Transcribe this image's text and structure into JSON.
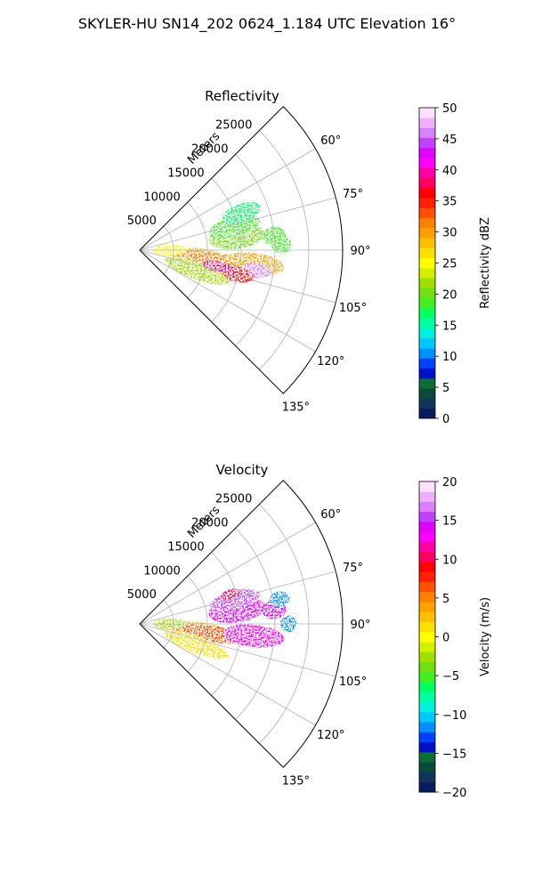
{
  "suptitle": "SKYLER-HU  SN14_202  0624_1.184 UTC Elevation 16°",
  "chart_data": [
    {
      "type": "heatmap",
      "projection": "polar-sector",
      "title": "Reflectivity",
      "radial_label": "Meters",
      "radial_ticks": [
        "5000",
        "10000",
        "15000",
        "20000",
        "25000"
      ],
      "radial_range": [
        0,
        30000
      ],
      "angle_range_deg": [
        45,
        135
      ],
      "angle_ticks": [
        "60°",
        "75°",
        "90°",
        "105°",
        "120°",
        "135°"
      ],
      "grid": true,
      "colorbar": {
        "label": "Reflectivity dBZ",
        "range": [
          0,
          50
        ],
        "ticks": [
          "0",
          "5",
          "10",
          "15",
          "20",
          "25",
          "30",
          "35",
          "40",
          "45",
          "50"
        ],
        "colors": [
          "#0b1a5e",
          "#10355a",
          "#0a4a3c",
          "#0b6e35",
          "#0010c8",
          "#0040ff",
          "#0090ff",
          "#00c8ff",
          "#00f0e0",
          "#00ffa0",
          "#00ff60",
          "#40f020",
          "#70e010",
          "#a0e000",
          "#d0f000",
          "#ffff00",
          "#ffe000",
          "#ffc000",
          "#ffa000",
          "#ff8000",
          "#ff5000",
          "#ff2000",
          "#ff0000",
          "#ff0060",
          "#ff00a0",
          "#ff00ff",
          "#e000ff",
          "#c040ff",
          "#d880ff",
          "#f0b0ff",
          "#ffe0ff"
        ]
      },
      "echoes": [
        {
          "az": 82,
          "r": 14500,
          "sr": 4200,
          "sa": 4.5,
          "level": 20
        },
        {
          "az": 76,
          "r": 14500,
          "sr": 3800,
          "sa": 3.5,
          "level": 18
        },
        {
          "az": 70,
          "r": 16000,
          "sr": 3000,
          "sa": 3,
          "level": 17
        },
        {
          "az": 93,
          "r": 7000,
          "sr": 5000,
          "sa": 4,
          "level": 28
        },
        {
          "az": 98,
          "r": 11000,
          "sr": 5500,
          "sa": 4,
          "level": 32
        },
        {
          "az": 97,
          "r": 17000,
          "sr": 4500,
          "sa": 3.5,
          "level": 30
        },
        {
          "az": 100,
          "r": 17500,
          "sr": 2200,
          "sa": 2.2,
          "level": 46
        },
        {
          "az": 104,
          "r": 14000,
          "sr": 3500,
          "sa": 3,
          "level": 36
        },
        {
          "az": 110,
          "r": 9000,
          "sr": 5000,
          "sa": 5,
          "level": 22
        },
        {
          "az": 84,
          "r": 20000,
          "sr": 1800,
          "sa": 2.5,
          "level": 18
        },
        {
          "az": 88,
          "r": 21000,
          "sr": 1500,
          "sa": 2,
          "level": 19
        },
        {
          "az": 90,
          "r": 4500,
          "sr": 2500,
          "sa": 5,
          "level": 25
        },
        {
          "az": 102,
          "r": 12000,
          "sr": 2500,
          "sa": 2.5,
          "level": 38
        }
      ]
    },
    {
      "type": "heatmap",
      "projection": "polar-sector",
      "title": "Velocity",
      "radial_label": "Meters",
      "radial_ticks": [
        "5000",
        "10000",
        "15000",
        "20000",
        "25000"
      ],
      "radial_range": [
        0,
        30000
      ],
      "angle_range_deg": [
        45,
        135
      ],
      "angle_ticks": [
        "60°",
        "75°",
        "90°",
        "105°",
        "120°",
        "135°"
      ],
      "grid": true,
      "colorbar": {
        "label": "Velocity (m/s)",
        "range": [
          -20,
          20
        ],
        "ticks": [
          "−20",
          "−15",
          "−10",
          "−5",
          "0",
          "5",
          "10",
          "15",
          "20"
        ],
        "colors": [
          "#0b1a5e",
          "#10355a",
          "#0a4a3c",
          "#0b6e35",
          "#0010c8",
          "#0040ff",
          "#0090ff",
          "#00c8ff",
          "#00f0e0",
          "#00ffa0",
          "#00ff60",
          "#40f020",
          "#70e010",
          "#a0e000",
          "#d0f000",
          "#ffff00",
          "#ffe000",
          "#ffc000",
          "#ffa000",
          "#ff8000",
          "#ff5000",
          "#ff2000",
          "#ff0000",
          "#ff0060",
          "#ff00a0",
          "#ff00ff",
          "#e000ff",
          "#c040ff",
          "#d880ff",
          "#f0b0ff",
          "#ffe0ff"
        ]
      },
      "echoes": [
        {
          "az": 82,
          "r": 14500,
          "sr": 4200,
          "sa": 4.5,
          "level": 14
        },
        {
          "az": 76,
          "r": 14500,
          "sr": 3800,
          "sa": 3.5,
          "level": 15
        },
        {
          "az": 72,
          "r": 14000,
          "sr": 1500,
          "sa": 2,
          "level": 10
        },
        {
          "az": 93,
          "r": 7000,
          "sr": 5000,
          "sa": 4,
          "level": 2
        },
        {
          "az": 98,
          "r": 11000,
          "sr": 5500,
          "sa": 4,
          "level": 7
        },
        {
          "az": 96,
          "r": 17000,
          "sr": 4500,
          "sa": 3.5,
          "level": 13
        },
        {
          "az": 110,
          "r": 9000,
          "sr": 5000,
          "sa": 5,
          "level": 1
        },
        {
          "az": 84,
          "r": 20000,
          "sr": 1800,
          "sa": 2.5,
          "level": 14
        },
        {
          "az": 80,
          "r": 21000,
          "sr": 1500,
          "sa": 2,
          "level": -12
        },
        {
          "az": 90,
          "r": 22000,
          "sr": 1200,
          "sa": 2,
          "level": -11
        },
        {
          "az": 90,
          "r": 4500,
          "sr": 2500,
          "sa": 5,
          "level": -2
        }
      ]
    }
  ]
}
